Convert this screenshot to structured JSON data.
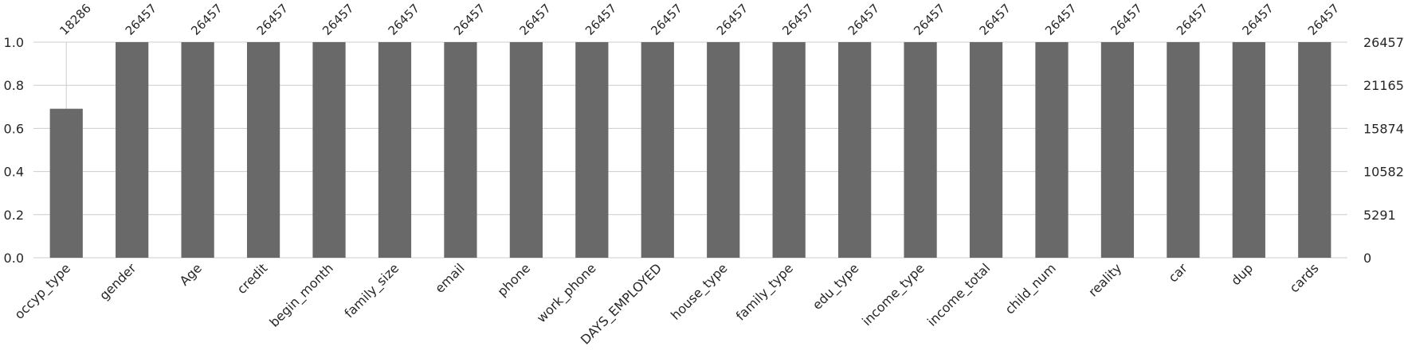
{
  "chart_data": {
    "type": "bar",
    "title": "",
    "xlabel": "",
    "ylabel": "",
    "ylim": [
      0,
      1.0
    ],
    "y_ticks": [
      "0.0",
      "0.2",
      "0.4",
      "0.6",
      "0.8",
      "1.0"
    ],
    "y2_ticks": [
      "0",
      "5291",
      "10582",
      "15874",
      "21165",
      "26457"
    ],
    "total": 26457,
    "grid": true,
    "bar_color": "#696969",
    "categories": [
      "occyp_type",
      "gender",
      "Age",
      "credit",
      "begin_month",
      "family_size",
      "email",
      "phone",
      "work_phone",
      "DAYS_EMPLOYED",
      "house_type",
      "family_type",
      "edu_type",
      "income_type",
      "income_total",
      "child_num",
      "reality",
      "car",
      "dup",
      "cards"
    ],
    "counts": [
      18286,
      26457,
      26457,
      26457,
      26457,
      26457,
      26457,
      26457,
      26457,
      26457,
      26457,
      26457,
      26457,
      26457,
      26457,
      26457,
      26457,
      26457,
      26457,
      26457
    ],
    "count_labels": [
      "18286",
      "26457",
      "26457",
      "26457",
      "26457",
      "26457",
      "26457",
      "26457",
      "26457",
      "26457",
      "26457",
      "26457",
      "26457",
      "26457",
      "26457",
      "26457",
      "26457",
      "26457",
      "26457",
      "26457"
    ]
  }
}
